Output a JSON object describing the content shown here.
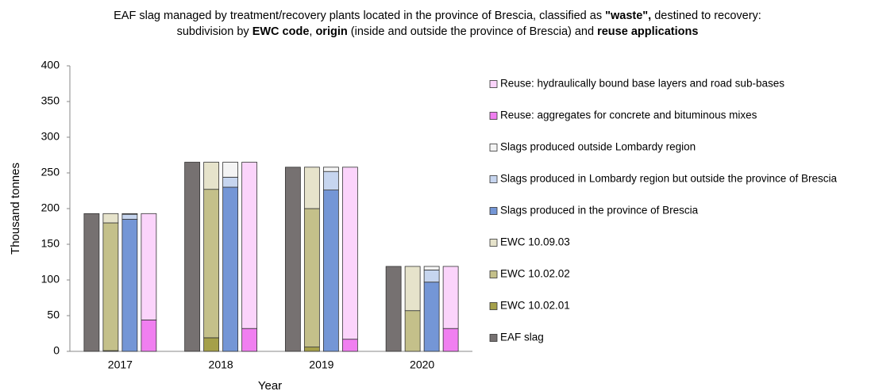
{
  "chart_data": {
    "type": "grouped-stacked-bar",
    "title_lines": [
      [
        {
          "text": "EAF slag managed by treatment/recovery plants located in the province of Brescia, classified as ",
          "bold": false
        },
        {
          "text": "\"waste\",",
          "bold": true
        },
        {
          "text": " destined to recovery:",
          "bold": false
        }
      ],
      [
        {
          "text": "subdivision by ",
          "bold": false
        },
        {
          "text": "EWC code",
          "bold": true
        },
        {
          "text": ", ",
          "bold": false
        },
        {
          "text": "origin",
          "bold": true
        },
        {
          "text": " (inside and outside the province of Brescia) and ",
          "bold": false
        },
        {
          "text": "reuse applications",
          "bold": true
        }
      ]
    ],
    "x_label": "Year",
    "y_label": "Thousand tonnes",
    "categories": [
      "2017",
      "2018",
      "2019",
      "2020"
    ],
    "ylim": [
      0,
      400
    ],
    "yticks": [
      0,
      50,
      100,
      150,
      200,
      250,
      300,
      350,
      400
    ],
    "series": [
      {
        "name": "EAF slag",
        "color": "#767171",
        "stack": 0,
        "values": [
          193,
          265,
          258,
          119
        ]
      },
      {
        "name": "EWC 10.02.01",
        "color": "#a5a04a",
        "stack": 1,
        "values": [
          1,
          19,
          6,
          0
        ]
      },
      {
        "name": "EWC 10.02.02",
        "color": "#c4c08a",
        "stack": 1,
        "values": [
          179,
          208,
          194,
          57
        ]
      },
      {
        "name": "EWC 10.09.03",
        "color": "#e6e3cb",
        "stack": 1,
        "values": [
          13,
          38,
          58,
          62
        ]
      },
      {
        "name": "Slags produced in the province of Brescia",
        "color": "#7496d6",
        "stack": 2,
        "values": [
          185,
          230,
          226,
          97
        ]
      },
      {
        "name": "Slags produced in Lombardy region but outside the province of Brescia",
        "color": "#c6d5ef",
        "stack": 2,
        "values": [
          7,
          14,
          26,
          17
        ]
      },
      {
        "name": "Slags produced outside Lombardy region",
        "color": "#f4f4f4",
        "stack": 2,
        "values": [
          1,
          21,
          6,
          5
        ]
      },
      {
        "name": "Reuse: aggregates for concrete and bituminous mixes",
        "color": "#f07ff0",
        "stack": 3,
        "values": [
          44,
          32,
          17,
          32
        ]
      },
      {
        "name": "Reuse: hydraulically bound base layers and road sub-bases",
        "color": "#fbd4fb",
        "stack": 3,
        "values": [
          149,
          233,
          241,
          87
        ]
      }
    ]
  }
}
